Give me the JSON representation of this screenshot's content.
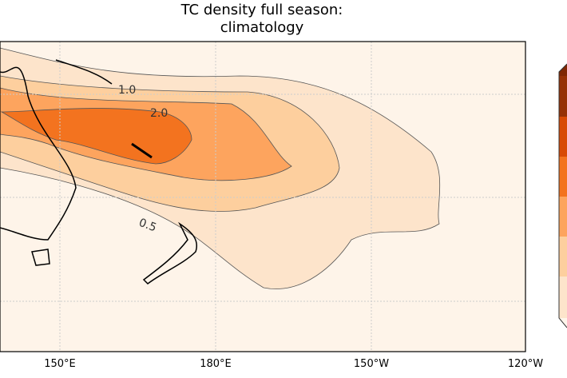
{
  "title_line1": "TC density full season:",
  "title_line2": "climatology",
  "x_ticks": [
    "150°E",
    "180°E",
    "150°W",
    "120°W"
  ],
  "contour_labels": [
    "1.0",
    "2.0",
    "0.5"
  ],
  "colors": {
    "background": "#fef4e9",
    "c1": "#fde4cb",
    "c2": "#fdcf9e",
    "c3": "#fda45e",
    "c4": "#f3731f",
    "c5": "#d84a05",
    "c6": "#963106"
  },
  "colorbar_levels": 7
}
